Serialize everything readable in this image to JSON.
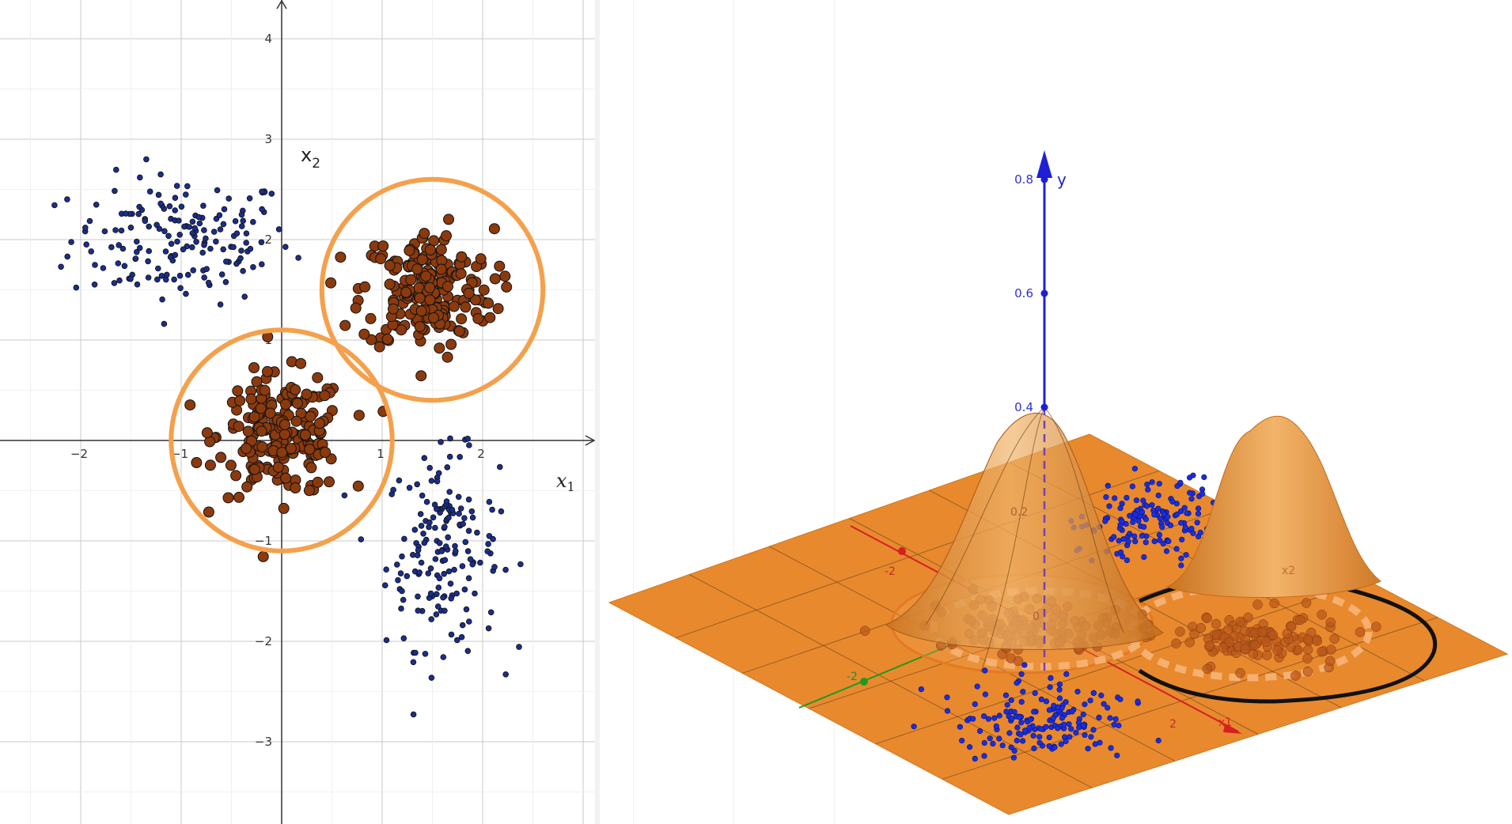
{
  "colors": {
    "grid": "#c8c8c8",
    "axis": "#333333",
    "class_blue": "#1a2e8a",
    "class_blue_3d": "#1a2ee0",
    "class_brown": "#8b3a0e",
    "circle": "#f4a04c",
    "plane": "#e8892e",
    "surface": "#e39a4a",
    "y_axis": "#1f1fd6",
    "x_axis_3d": "#d42020",
    "z_axis_3d": "#1e9a1e",
    "boundary": "#111111"
  },
  "chart_data": [
    {
      "type": "scatter",
      "panel": "2d",
      "xlabel_main": "x",
      "xlabel_sub": "1",
      "ylabel_main": "x",
      "ylabel_sub": "2",
      "xlim": [
        -2.8,
        3.1
      ],
      "ylim": [
        -3.8,
        4.3
      ],
      "grid": true,
      "x_ticks": [
        -2,
        -1,
        1,
        2
      ],
      "x_tick_labels": [
        "−2",
        "−1",
        "1",
        "2"
      ],
      "y_ticks": [
        -3,
        -2,
        -1,
        1,
        2,
        3,
        4
      ],
      "y_tick_labels": [
        "−3",
        "−2",
        "−1",
        "1",
        "2",
        "3",
        "4"
      ],
      "clusters": [
        {
          "class": "blue",
          "cx": -1.0,
          "cy": 2.0,
          "sx": 0.55,
          "sy": 0.32,
          "n": 170,
          "radius": 3.4
        },
        {
          "class": "blue",
          "cx": 1.6,
          "cy": -1.1,
          "sx": 0.28,
          "sy": 0.48,
          "n": 170,
          "radius": 3.4
        },
        {
          "class": "brown",
          "cx": 0.0,
          "cy": 0.05,
          "sx": 0.32,
          "sy": 0.3,
          "n": 210,
          "radius": 6.5
        },
        {
          "class": "brown",
          "cx": 1.45,
          "cy": 1.5,
          "sx": 0.33,
          "sy": 0.3,
          "n": 210,
          "radius": 6.5
        }
      ],
      "circles": [
        {
          "cx": 0.0,
          "cy": 0.0,
          "r": 1.1
        },
        {
          "cx": 1.5,
          "cy": 1.5,
          "r": 1.1
        }
      ]
    },
    {
      "type": "surface-3d",
      "panel": "3d",
      "y_axis_label": "y",
      "y_ticks": [
        0.4,
        0.6,
        0.8
      ],
      "y_tick_labels": [
        "0.4",
        "0.6",
        "0.8"
      ],
      "faint_labels": {
        "y_0_2": "0.2",
        "x_neg2": "-2",
        "x_2": "2",
        "origin": "0",
        "z_neg2": "-2",
        "x1_axis": "x1",
        "x2_axis": "x2"
      },
      "peaks": [
        {
          "cx": 0.0,
          "cy": 0.0,
          "height": 0.4
        },
        {
          "cx": 1.5,
          "cy": 1.5,
          "height": 0.4
        }
      ]
    }
  ]
}
